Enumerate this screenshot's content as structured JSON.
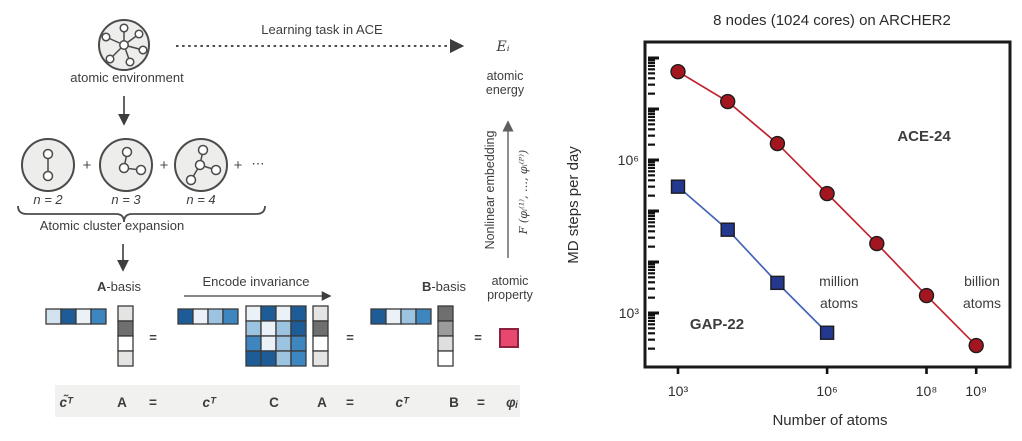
{
  "left_diagram": {
    "atomic_environment_label": "atomic environment",
    "learning_task_label": "Learning task in ACE",
    "atomic_energy_symbol": "Eᵢ",
    "atomic_energy_label": [
      "atomic",
      "energy"
    ],
    "cluster_plus": "+",
    "cluster_ellipsis": "⋯",
    "cluster_labels": [
      "n = 2",
      "n = 3",
      "n = 4"
    ],
    "expansion_label": "Atomic cluster expansion",
    "a_basis": {
      "bold": "A",
      "rest": "-basis"
    },
    "b_basis": {
      "bold": "B",
      "rest": "-basis"
    },
    "encode_invariance_label": "Encode invariance",
    "atomic_property_label": [
      "atomic",
      "property"
    ],
    "nonlinear_embedding_label": "Nonlinear embedding",
    "embedding_function": "F (φᵢ⁽¹⁾, …, φᵢ⁽ᴾ⁾)",
    "equation_tokens": [
      "c̃ᵀ",
      "A",
      "=",
      "cᵀ",
      "C",
      "A",
      "=",
      "cᵀ",
      "B",
      "=",
      "φᵢ"
    ],
    "colors": {
      "diagram_ink": "#3d3d3d",
      "circle_fill": "#ededeb",
      "pink_property": "#e8486e",
      "pink_border": "#8d2140",
      "dark_blue": "#1d5c97",
      "medium_blue": "#3e86c0",
      "light_blue": "#9cc3e0",
      "pale_blue": "#d3e2ef"
    },
    "matrices": {
      "c_tilde_row": [
        "#d3e2ef",
        "#1d5c97",
        "#eaf1f7",
        "#3e86c0"
      ],
      "a_column": [
        "#e4e4e2",
        "#6f6f6f",
        "#ffffff",
        "#e4e4e2"
      ],
      "c_row": [
        "#1d5c97",
        "#eaf1f7",
        "#9cc3e0",
        "#3e86c0"
      ],
      "c_matrix": [
        [
          "#eaf1f7",
          "#1d5c97",
          "#eaf1f7",
          "#1d5c97"
        ],
        [
          "#9cc3e0",
          "#eaf1f7",
          "#9cc3e0",
          "#1d5c97"
        ],
        [
          "#3e86c0",
          "#eaf1f7",
          "#9cc3e0",
          "#3e86c0"
        ],
        [
          "#1d5c97",
          "#1d5c97",
          "#9cc3e0",
          "#3e86c0"
        ]
      ],
      "b_column": [
        "#6f6f6f",
        "#9b9b9b",
        "#dedede",
        "#ffffff"
      ]
    }
  },
  "chart_data": {
    "type": "line",
    "title": "8 nodes (1024 cores) on ARCHER2",
    "xlabel": "Number of atoms",
    "ylabel": "MD steps per day",
    "xscale": "log",
    "yscale": "log",
    "xlim": [
      220,
      4800000000
    ],
    "ylim": [
      90,
      200000000
    ],
    "grid": false,
    "legend_position": "inline-labels",
    "x_ticks": [
      {
        "value": 1000,
        "label": "10³"
      },
      {
        "value": 1000000,
        "label": "10⁶"
      },
      {
        "value": 100000000,
        "label": "10⁸"
      },
      {
        "value": 1000000000,
        "label": "10⁹"
      }
    ],
    "y_ticks": [
      {
        "value": 1000000,
        "label": "10⁶"
      },
      {
        "value": 1000,
        "label": "10³"
      }
    ],
    "series": [
      {
        "name": "ACE-24",
        "color": "#bf2430",
        "marker": "circle",
        "marker_color": "#a4161f",
        "x": [
          1000,
          10000,
          100000,
          1000000,
          10000000,
          100000000,
          1000000000
        ],
        "y": [
          54000000,
          14000000,
          2100000,
          220000,
          23000,
          2200,
          230
        ]
      },
      {
        "name": "GAP-22",
        "color": "#4563b8",
        "marker": "square",
        "marker_color": "#24388f",
        "x": [
          1000,
          10000,
          100000,
          1000000
        ],
        "y": [
          300000,
          43000,
          3900,
          410
        ]
      }
    ],
    "annotations": [
      {
        "lines": [
          "million",
          "atoms"
        ]
      },
      {
        "lines": [
          "billion",
          "atoms"
        ]
      }
    ]
  }
}
